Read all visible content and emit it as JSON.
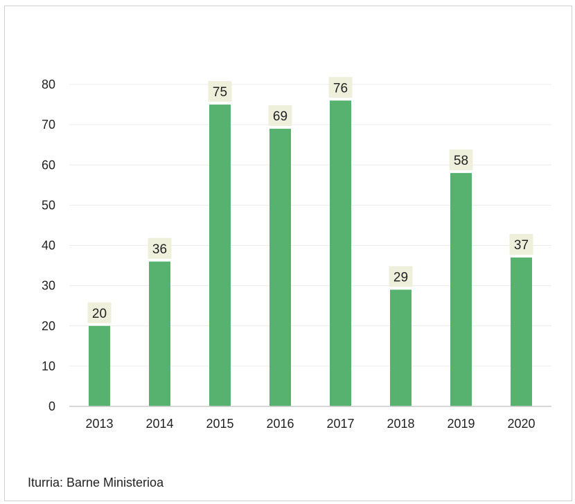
{
  "chart_data": {
    "type": "bar",
    "categories": [
      "2013",
      "2014",
      "2015",
      "2016",
      "2017",
      "2018",
      "2019",
      "2020"
    ],
    "values": [
      20,
      36,
      75,
      69,
      76,
      29,
      58,
      37
    ],
    "ylim": [
      0,
      80
    ],
    "yticks": [
      0,
      10,
      20,
      30,
      40,
      50,
      60,
      70,
      80
    ],
    "grid": true,
    "legend": "none",
    "colors": {
      "bar": "#57b26f",
      "label_bg": "#eef0dc",
      "grid": "#ececec",
      "axis": "#cccccc"
    }
  },
  "source": "Iturria: Barne Ministerioa"
}
